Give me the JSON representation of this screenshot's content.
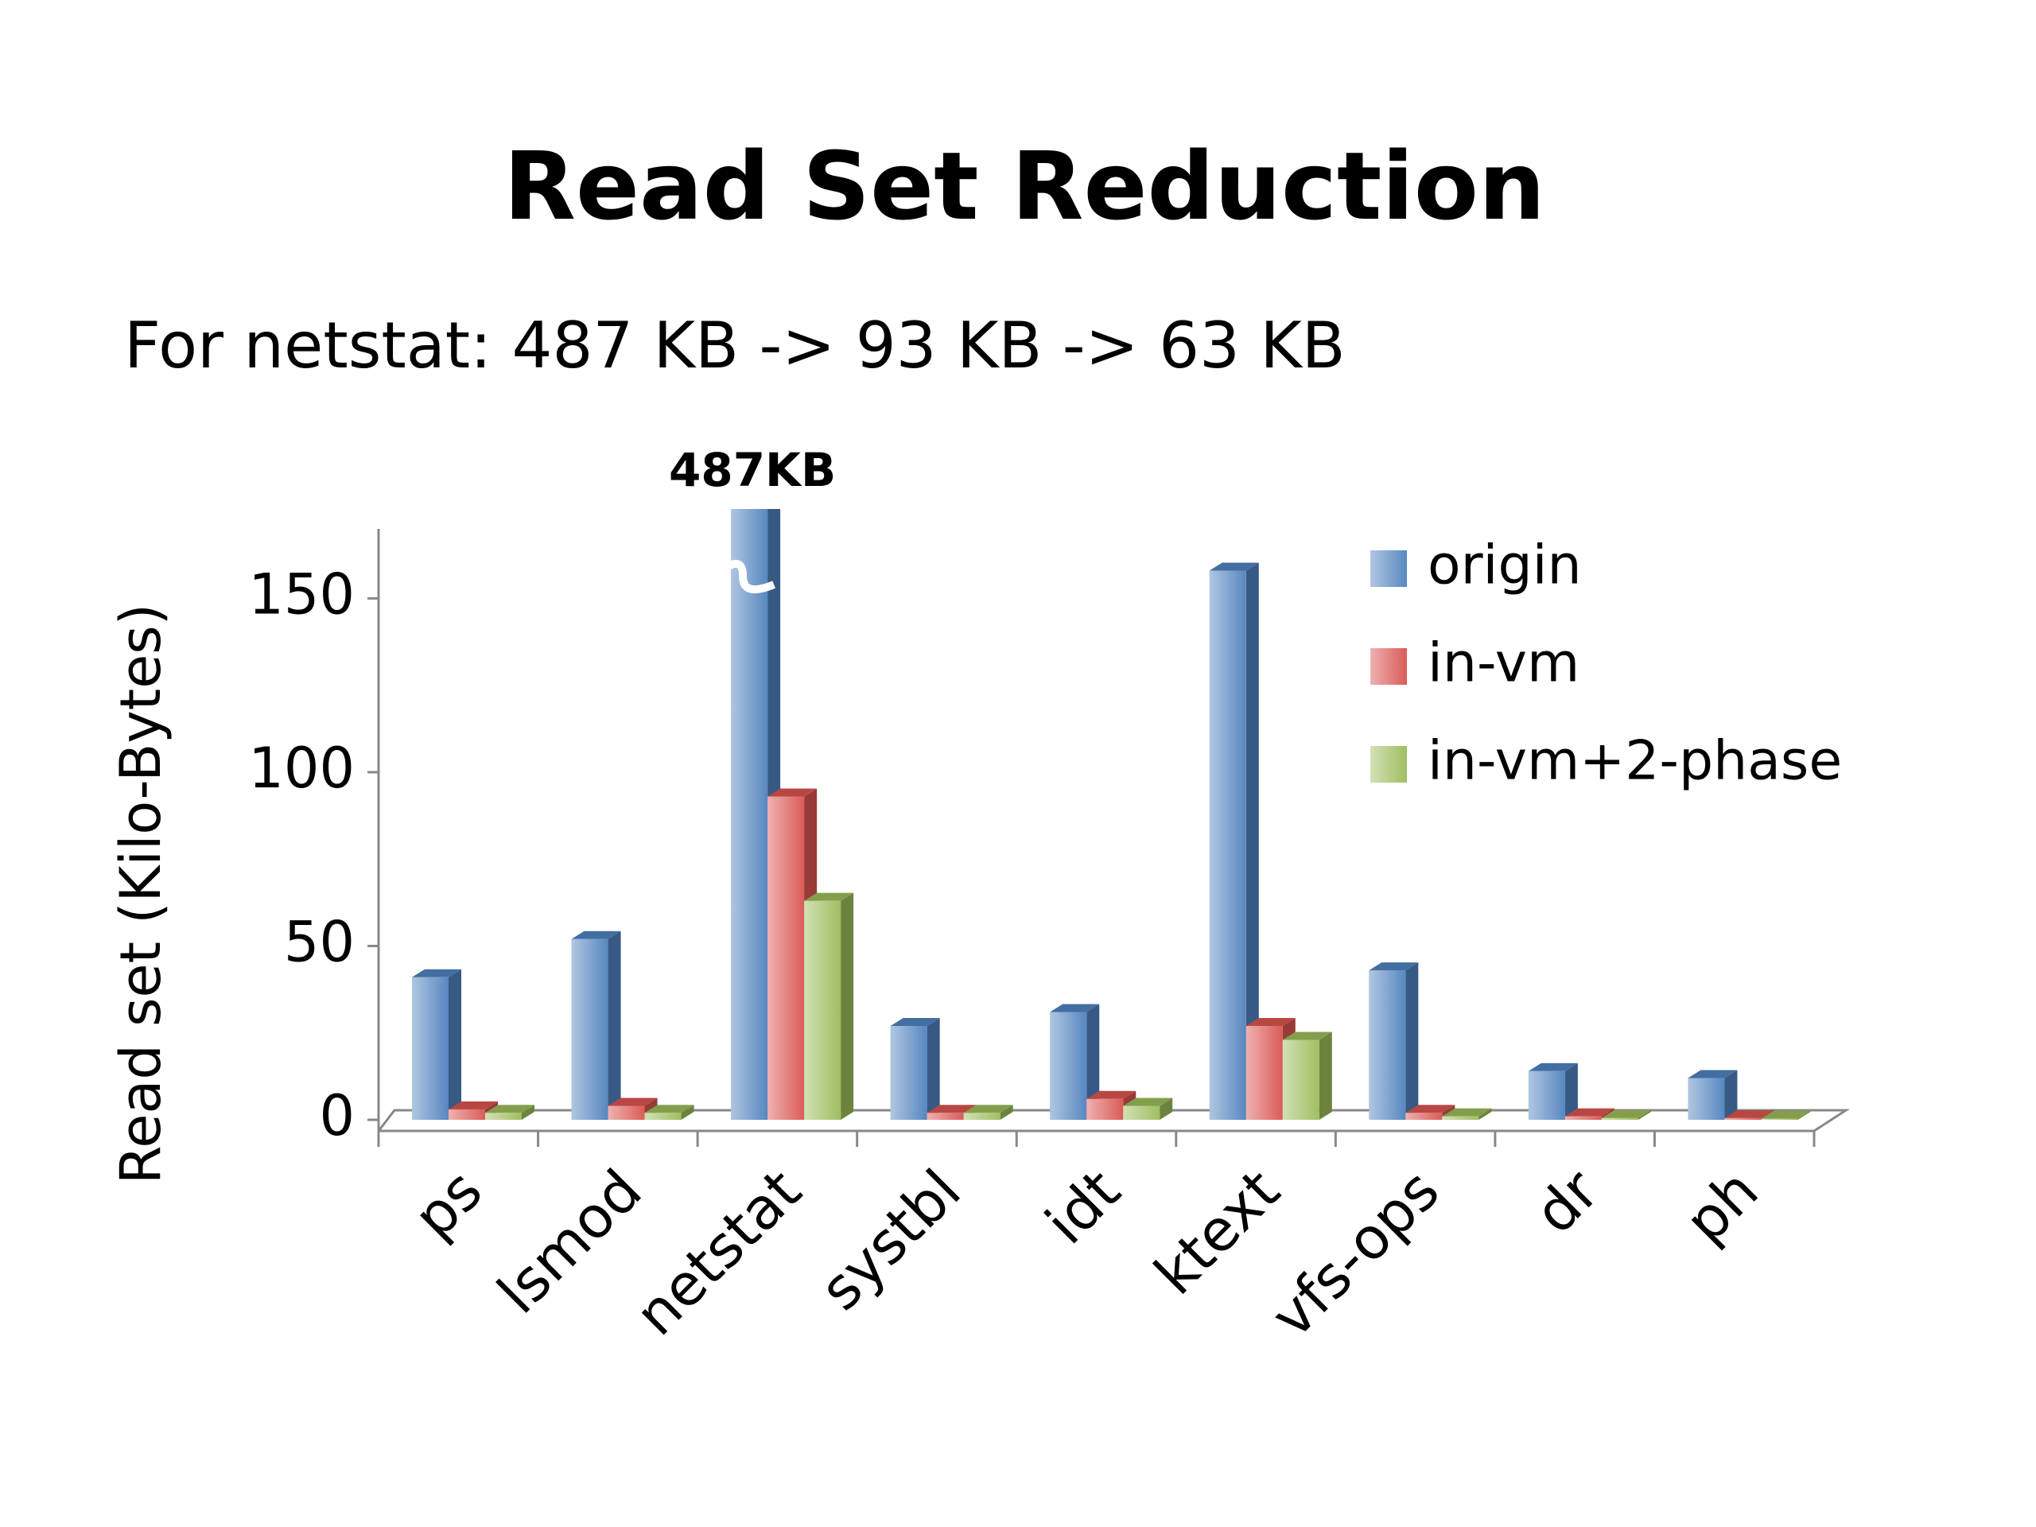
{
  "chart_data": {
    "type": "bar3d",
    "title": "Read Set Reduction",
    "subtitle": "For netstat: 487 KB -> 93 KB -> 63 KB",
    "y_label": "Read set (Kilo-Bytes)",
    "categories": [
      "ps",
      "lsmod",
      "netstat",
      "systbl",
      "idt",
      "ktext",
      "vfs-ops",
      "dr",
      "ph"
    ],
    "series": [
      {
        "name": "origin",
        "color": "#4f81bd",
        "values": [
          41,
          52,
          487,
          27,
          31,
          158,
          43,
          14,
          12
        ],
        "value_labels": [
          null,
          null,
          "487KB",
          null,
          null,
          null,
          null,
          null,
          null
        ]
      },
      {
        "name": "in-vm",
        "color": "#d9534f",
        "values": [
          3,
          4,
          93,
          2,
          6,
          27,
          2,
          1,
          0.5
        ]
      },
      {
        "name": "in-vm+2-phase",
        "color": "#9bbb59",
        "values": [
          2,
          2,
          63,
          2,
          4,
          23,
          1,
          0.5,
          0.3
        ]
      }
    ],
    "ylim": [
      0,
      170
    ],
    "yticks": [
      0,
      50,
      100,
      150
    ],
    "legend": "upper right",
    "title_color": "#1a86f0"
  }
}
